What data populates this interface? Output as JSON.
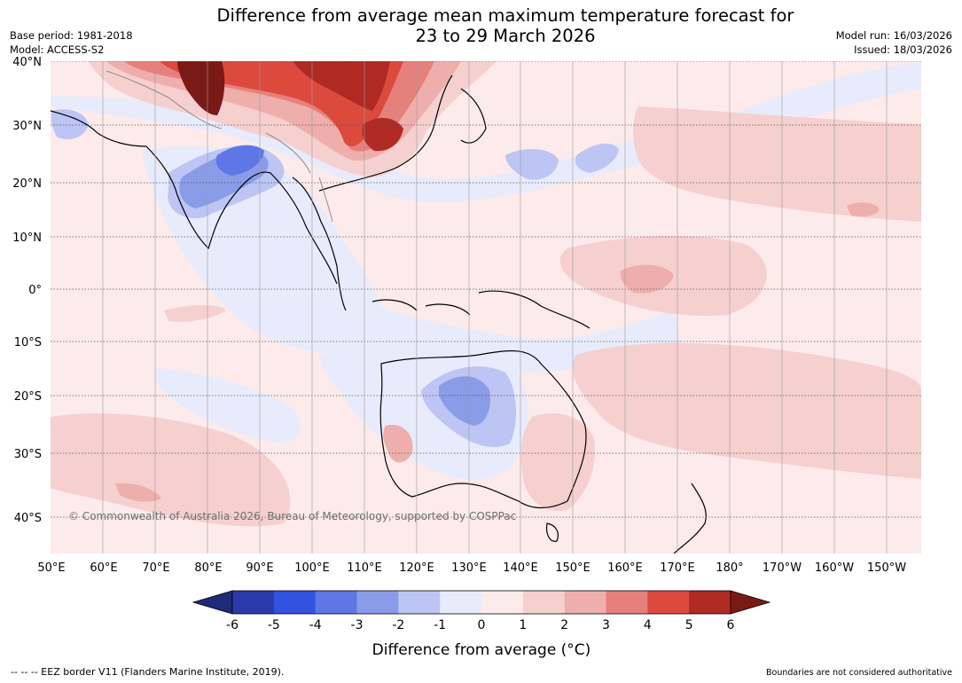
{
  "title": {
    "line1": "Difference from average mean maximum temperature forecast for",
    "line2": "23 to 29 March 2026"
  },
  "meta_left": {
    "base_period": "Base period: 1981-2018",
    "model": "Model: ACCESS-S2"
  },
  "meta_right": {
    "model_run": "Model run: 16/03/2026",
    "issued": "Issued: 18/03/2026"
  },
  "map": {
    "lat_labels": [
      "40°N",
      "30°N",
      "20°N",
      "10°N",
      "0°",
      "10°S",
      "20°S",
      "30°S",
      "40°S"
    ],
    "lon_labels": [
      "50°E",
      "60°E",
      "70°E",
      "80°E",
      "90°E",
      "100°E",
      "110°E",
      "120°E",
      "130°E",
      "140°E",
      "150°E",
      "160°E",
      "170°E",
      "180°",
      "170°W",
      "160°W",
      "150°W"
    ],
    "copyright": "© Commonwealth of Australia 2026, Bureau of Meteorology, supported by COSPPac"
  },
  "colorbar": {
    "ticks": [
      "-6",
      "-5",
      "-4",
      "-3",
      "-2",
      "-1",
      "0",
      "1",
      "2",
      "3",
      "4",
      "5",
      "6"
    ],
    "colors": [
      "#2a3aa8",
      "#3452e0",
      "#5f77e4",
      "#8a9ce8",
      "#bcc5f3",
      "#e8ebfb",
      "#fcebea",
      "#f5d0cf",
      "#eeaeac",
      "#e6807c",
      "#dc4a3e",
      "#b02a24"
    ],
    "low_extend_color": "#1f2a78",
    "high_extend_color": "#7a1a16",
    "label": "Difference from average (°C)"
  },
  "footer": {
    "eez_note": "--  --  -- EEZ border V11 (Flanders Marine Institute, 2019).",
    "boundaries_note": "Boundaries are not considered authoritative"
  }
}
